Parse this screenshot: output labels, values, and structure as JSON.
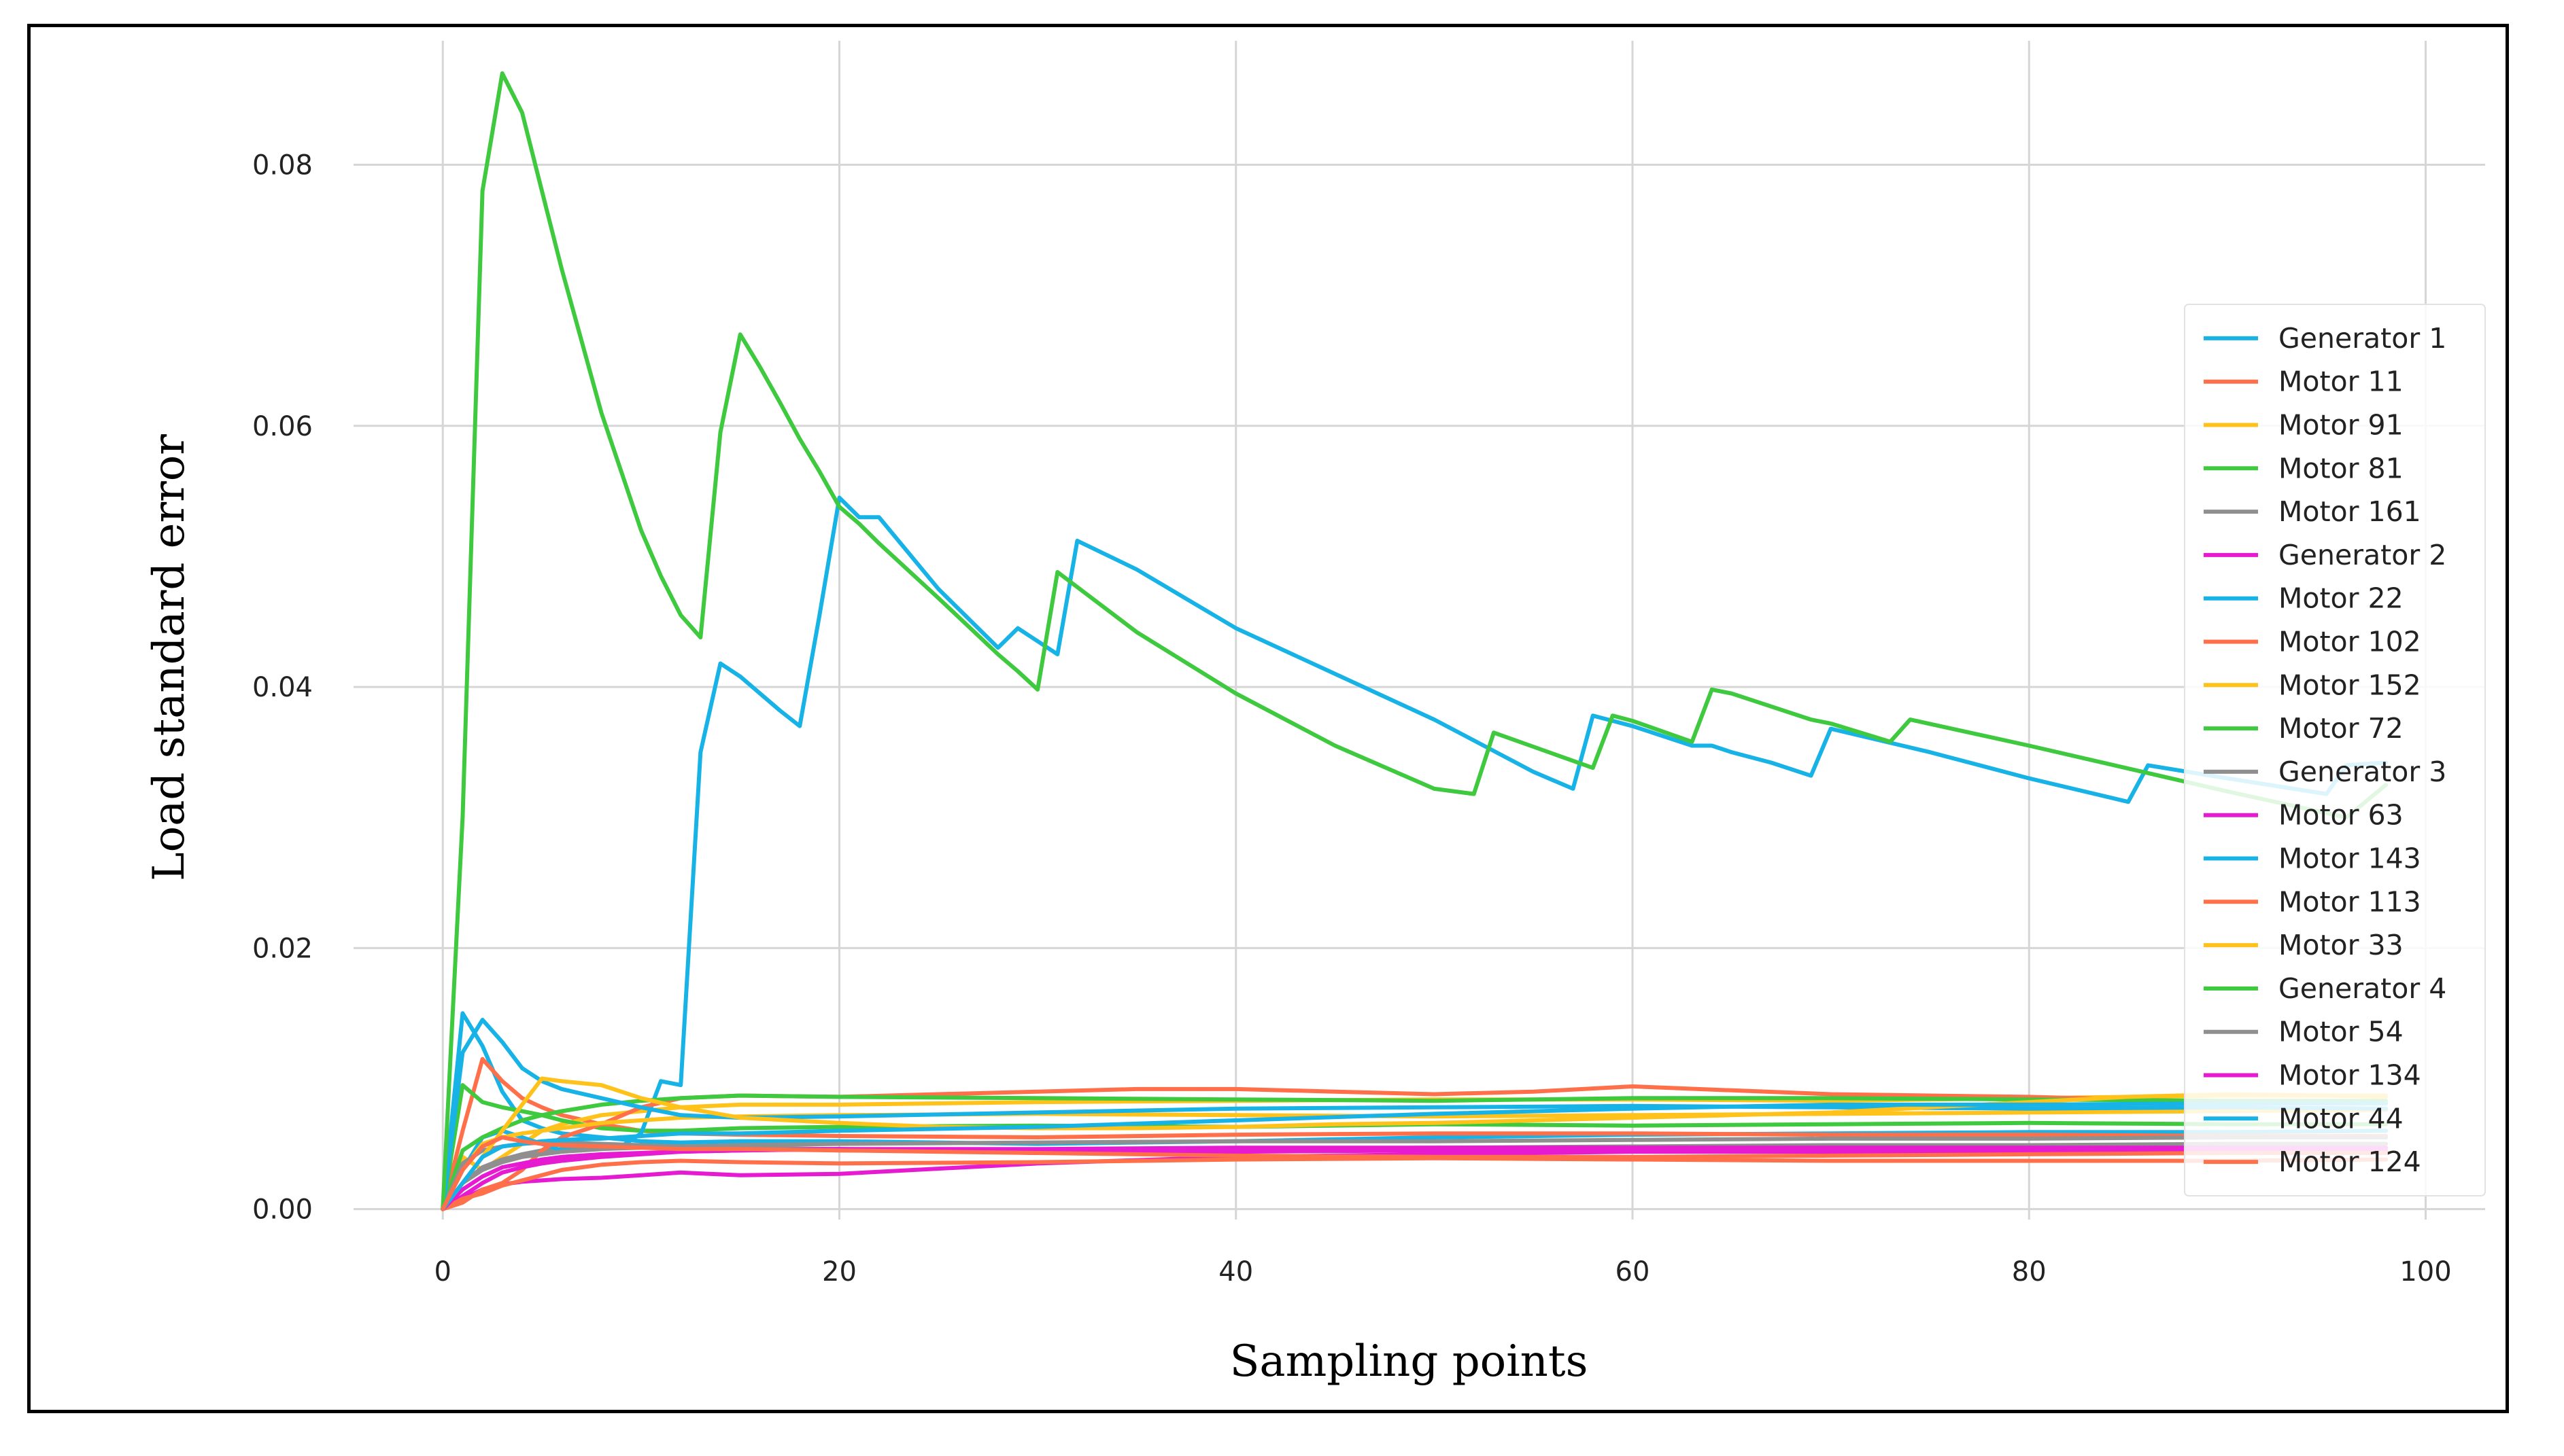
{
  "chart_data": {
    "type": "line",
    "title": "",
    "xlabel": "Sampling points",
    "ylabel": "Load standard error",
    "xlim": [
      -4.5,
      103
    ],
    "ylim": [
      -0.0008,
      0.0895
    ],
    "xticks": [
      0,
      20,
      40,
      60,
      80,
      100
    ],
    "xtick_labels": [
      "0",
      "20",
      "40",
      "60",
      "80",
      "100"
    ],
    "yticks": [
      0.0,
      0.02,
      0.04,
      0.06,
      0.08
    ],
    "ytick_labels": [
      "0.00",
      "0.02",
      "0.04",
      "0.06",
      "0.08"
    ],
    "grid": true,
    "legend_position": "right",
    "series": [
      {
        "name": "Generator 1",
        "color": "#17b3e6",
        "x": [
          0,
          1,
          2,
          3,
          4,
          5,
          6,
          8,
          10,
          12,
          15,
          20,
          30,
          40,
          50,
          60,
          70,
          80,
          90,
          98
        ],
        "y": [
          0,
          0.015,
          0.0125,
          0.009,
          0.0068,
          0.0062,
          0.0058,
          0.0055,
          0.0052,
          0.0051,
          0.0052,
          0.0052,
          0.005,
          0.0052,
          0.0055,
          0.0057,
          0.0058,
          0.0059,
          0.0059,
          0.006
        ]
      },
      {
        "name": "Motor 11",
        "color": "#ff6f4a",
        "x": [
          0,
          1,
          2,
          3,
          4,
          5,
          6,
          8,
          10,
          12,
          15,
          20,
          30,
          40,
          50,
          60,
          70,
          80,
          90,
          98
        ],
        "y": [
          0,
          0.006,
          0.0115,
          0.0098,
          0.0085,
          0.0078,
          0.0072,
          0.0065,
          0.006,
          0.0058,
          0.0057,
          0.0056,
          0.0055,
          0.0057,
          0.0058,
          0.0058,
          0.0057,
          0.0057,
          0.0056,
          0.0056
        ]
      },
      {
        "name": "Motor 91",
        "color": "#ffc21a",
        "x": [
          0,
          1,
          2,
          3,
          4,
          5,
          6,
          8,
          10,
          12,
          15,
          20,
          30,
          40,
          50,
          60,
          70,
          80,
          90,
          98
        ],
        "y": [
          0,
          0.004,
          0.003,
          0.004,
          0.005,
          0.006,
          0.0065,
          0.0072,
          0.0075,
          0.0078,
          0.008,
          0.008,
          0.0082,
          0.0083,
          0.0084,
          0.0084,
          0.0083,
          0.0085,
          0.0087,
          0.0087
        ]
      },
      {
        "name": "Motor 81",
        "color": "#3ec93e",
        "x": [
          0,
          1,
          2,
          3,
          4,
          5,
          6,
          8,
          10,
          12,
          15,
          20,
          30,
          40,
          50,
          60,
          70,
          80,
          90,
          98
        ],
        "y": [
          0,
          0.0095,
          0.0082,
          0.0078,
          0.0075,
          0.0072,
          0.0068,
          0.0062,
          0.006,
          0.006,
          0.0062,
          0.0063,
          0.0064,
          0.0063,
          0.0065,
          0.0064,
          0.0065,
          0.0066,
          0.0065,
          0.0065
        ]
      },
      {
        "name": "Motor 161",
        "color": "#8f8f8f",
        "x": [
          0,
          1,
          2,
          3,
          4,
          5,
          6,
          8,
          10,
          12,
          15,
          20,
          30,
          40,
          50,
          60,
          70,
          80,
          90,
          98
        ],
        "y": [
          0,
          0.002,
          0.0032,
          0.0038,
          0.0042,
          0.0045,
          0.0046,
          0.0047,
          0.0048,
          0.0048,
          0.0047,
          0.0045,
          0.0044,
          0.0045,
          0.0046,
          0.0046,
          0.0047,
          0.0047,
          0.0047,
          0.0047
        ]
      },
      {
        "name": "Generator 2",
        "color": "#e61ad1",
        "x": [
          0,
          1,
          2,
          3,
          4,
          5,
          6,
          8,
          10,
          12,
          15,
          20,
          30,
          40,
          50,
          60,
          70,
          80,
          90,
          98
        ],
        "y": [
          0,
          0.0008,
          0.0015,
          0.0019,
          0.0021,
          0.0022,
          0.0023,
          0.0024,
          0.0026,
          0.0028,
          0.0026,
          0.0027,
          0.0035,
          0.004,
          0.0042,
          0.0044,
          0.0044,
          0.0044,
          0.0043,
          0.0043
        ]
      },
      {
        "name": "Motor 22",
        "color": "#17b3e6",
        "x": [
          0,
          1,
          2,
          3,
          4,
          5,
          6,
          7,
          8,
          9,
          10,
          11,
          12,
          13,
          14,
          15,
          16,
          17,
          18,
          19,
          20,
          21,
          22,
          25,
          28,
          29,
          30,
          31,
          32,
          35,
          40,
          45,
          50,
          55,
          57,
          58,
          59,
          60,
          62,
          63,
          64,
          65,
          67,
          69,
          70,
          75,
          80,
          85,
          86,
          90,
          95,
          96,
          98
        ],
        "y": [
          0,
          0.003,
          0.0055,
          0.006,
          0.0055,
          0.005,
          0.0045,
          0.0045,
          0.0048,
          0.0048,
          0.0058,
          0.0098,
          0.0095,
          0.035,
          0.0418,
          0.0408,
          0.0395,
          0.0382,
          0.037,
          0.0455,
          0.0545,
          0.053,
          0.053,
          0.0475,
          0.043,
          0.0445,
          0.0435,
          0.0425,
          0.0512,
          0.049,
          0.0445,
          0.041,
          0.0375,
          0.0335,
          0.0322,
          0.0378,
          0.0374,
          0.037,
          0.036,
          0.0355,
          0.0355,
          0.035,
          0.0342,
          0.0332,
          0.0368,
          0.035,
          0.033,
          0.0312,
          0.034,
          0.033,
          0.0318,
          0.034,
          0.0342
        ]
      },
      {
        "name": "Motor 102",
        "color": "#ff6f4a",
        "x": [
          0,
          1,
          2,
          3,
          4,
          5,
          6,
          8,
          10,
          12,
          15,
          20,
          25,
          30,
          35,
          40,
          45,
          50,
          55,
          60,
          65,
          70,
          75,
          80,
          85,
          90,
          95,
          98
        ],
        "y": [
          0,
          0.0005,
          0.0015,
          0.002,
          0.003,
          0.0045,
          0.0055,
          0.0065,
          0.0078,
          0.0085,
          0.0087,
          0.0086,
          0.0088,
          0.009,
          0.0092,
          0.0092,
          0.009,
          0.0088,
          0.009,
          0.0094,
          0.0091,
          0.0088,
          0.0087,
          0.0086,
          0.0084,
          0.0082,
          0.0082,
          0.0081
        ]
      },
      {
        "name": "Motor 152",
        "color": "#ffc21a",
        "x": [
          0,
          1,
          2,
          3,
          4,
          5,
          6,
          8,
          10,
          12,
          15,
          20,
          30,
          40,
          50,
          60,
          70,
          80,
          90,
          98
        ],
        "y": [
          0,
          0.003,
          0.005,
          0.0055,
          0.0058,
          0.006,
          0.0062,
          0.0066,
          0.0068,
          0.007,
          0.0071,
          0.0072,
          0.0073,
          0.0072,
          0.0071,
          0.0072,
          0.0073,
          0.0074,
          0.0075,
          0.0076
        ]
      },
      {
        "name": "Motor 72",
        "color": "#3ec93e",
        "x": [
          0,
          1,
          2,
          3,
          4,
          5,
          6,
          8,
          10,
          12,
          15,
          20,
          30,
          40,
          50,
          60,
          70,
          80,
          90,
          98
        ],
        "y": [
          0,
          0.0045,
          0.0055,
          0.0062,
          0.0068,
          0.0072,
          0.0075,
          0.008,
          0.0083,
          0.0085,
          0.0087,
          0.0086,
          0.0085,
          0.0084,
          0.0083,
          0.0085,
          0.0085,
          0.0084,
          0.0083,
          0.0083
        ]
      },
      {
        "name": "Generator 3",
        "color": "#8f8f8f",
        "x": [
          0,
          1,
          2,
          3,
          4,
          5,
          6,
          8,
          10,
          12,
          15,
          20,
          30,
          40,
          50,
          60,
          70,
          80,
          90,
          98
        ],
        "y": [
          0,
          0.0035,
          0.0045,
          0.0048,
          0.005,
          0.0051,
          0.0051,
          0.005,
          0.0049,
          0.0048,
          0.0047,
          0.0046,
          0.0045,
          0.0046,
          0.0047,
          0.0048,
          0.0049,
          0.0049,
          0.005,
          0.005
        ]
      },
      {
        "name": "Motor 63",
        "color": "#e61ad1",
        "x": [
          0,
          1,
          2,
          3,
          4,
          5,
          6,
          8,
          10,
          12,
          15,
          20,
          30,
          40,
          50,
          60,
          70,
          80,
          90,
          98
        ],
        "y": [
          0,
          0.001,
          0.002,
          0.0028,
          0.0032,
          0.0035,
          0.0037,
          0.004,
          0.0042,
          0.0044,
          0.0045,
          0.0046,
          0.0043,
          0.0044,
          0.0045,
          0.0045,
          0.0045,
          0.0045,
          0.0045,
          0.0045
        ]
      },
      {
        "name": "Motor 143",
        "color": "#17b3e6",
        "x": [
          0,
          1,
          2,
          3,
          4,
          5,
          6,
          8,
          10,
          12,
          15,
          20,
          30,
          40,
          50,
          60,
          70,
          80,
          90,
          98
        ],
        "y": [
          0,
          0.012,
          0.0145,
          0.0128,
          0.0108,
          0.0098,
          0.0092,
          0.0085,
          0.0078,
          0.0072,
          0.007,
          0.0071,
          0.0074,
          0.0077,
          0.0078,
          0.0079,
          0.0078,
          0.0077,
          0.0078,
          0.0077
        ]
      },
      {
        "name": "Motor 113",
        "color": "#ff6f4a",
        "x": [
          0,
          1,
          2,
          3,
          4,
          5,
          6,
          8,
          10,
          12,
          15,
          20,
          30,
          40,
          50,
          60,
          70,
          80,
          90,
          98
        ],
        "y": [
          0,
          0.0008,
          0.0012,
          0.0018,
          0.0022,
          0.0026,
          0.003,
          0.0034,
          0.0036,
          0.0037,
          0.0036,
          0.0035,
          0.0036,
          0.0038,
          0.0039,
          0.0038,
          0.0037,
          0.0037,
          0.0037,
          0.0038
        ]
      },
      {
        "name": "Motor 33",
        "color": "#ffc21a",
        "x": [
          0,
          1,
          2,
          3,
          4,
          5,
          6,
          8,
          10,
          12,
          15,
          20,
          25,
          30,
          35,
          40,
          45,
          50,
          55,
          60,
          65,
          70,
          75,
          80,
          85,
          90,
          95,
          98
        ],
        "y": [
          0,
          0.002,
          0.004,
          0.006,
          0.008,
          0.01,
          0.0098,
          0.0095,
          0.0085,
          0.0078,
          0.007,
          0.0066,
          0.0063,
          0.0062,
          0.0062,
          0.0063,
          0.0065,
          0.0066,
          0.0068,
          0.007,
          0.0072,
          0.0074,
          0.0078,
          0.0082,
          0.0086,
          0.0088,
          0.0087,
          0.0086
        ]
      },
      {
        "name": "Generator 4",
        "color": "#3ec93e",
        "x": [
          0,
          1,
          2,
          3,
          4,
          5,
          6,
          7,
          8,
          9,
          10,
          11,
          12,
          13,
          14,
          15,
          16,
          17,
          18,
          19,
          20,
          21,
          22,
          25,
          28,
          29,
          30,
          31,
          35,
          40,
          45,
          50,
          52,
          53,
          58,
          59,
          60,
          63,
          64,
          65,
          69,
          70,
          73,
          74,
          80,
          90,
          96,
          98
        ],
        "y": [
          0,
          0.03,
          0.078,
          0.087,
          0.084,
          0.078,
          0.072,
          0.0665,
          0.061,
          0.0565,
          0.052,
          0.0485,
          0.0455,
          0.0438,
          0.0595,
          0.067,
          0.0645,
          0.0618,
          0.059,
          0.0565,
          0.0538,
          0.0525,
          0.051,
          0.0468,
          0.0425,
          0.0412,
          0.0398,
          0.0488,
          0.0442,
          0.0395,
          0.0355,
          0.0322,
          0.0318,
          0.0365,
          0.0338,
          0.0378,
          0.0374,
          0.0358,
          0.0398,
          0.0395,
          0.0375,
          0.0372,
          0.0358,
          0.0375,
          0.0355,
          0.032,
          0.03,
          0.0325
        ]
      },
      {
        "name": "Motor 54",
        "color": "#8f8f8f",
        "x": [
          0,
          1,
          2,
          3,
          4,
          5,
          6,
          8,
          10,
          12,
          15,
          20,
          30,
          40,
          50,
          60,
          70,
          80,
          90,
          98
        ],
        "y": [
          0,
          0.002,
          0.003,
          0.0036,
          0.004,
          0.0042,
          0.0044,
          0.0046,
          0.0047,
          0.0048,
          0.0049,
          0.005,
          0.0051,
          0.0052,
          0.0052,
          0.0053,
          0.0054,
          0.0054,
          0.0055,
          0.0055
        ]
      },
      {
        "name": "Motor 134",
        "color": "#e61ad1",
        "x": [
          0,
          1,
          2,
          3,
          4,
          5,
          6,
          8,
          10,
          12,
          15,
          20,
          30,
          40,
          50,
          60,
          70,
          80,
          90,
          98
        ],
        "y": [
          0,
          0.0015,
          0.0025,
          0.0032,
          0.0035,
          0.0038,
          0.004,
          0.0042,
          0.0043,
          0.0044,
          0.0045,
          0.0046,
          0.0046,
          0.0047,
          0.0047,
          0.0047,
          0.0047,
          0.0047,
          0.0047,
          0.0047
        ]
      },
      {
        "name": "Motor 44",
        "color": "#17b3e6",
        "x": [
          0,
          1,
          2,
          3,
          4,
          5,
          6,
          8,
          10,
          12,
          15,
          20,
          30,
          40,
          50,
          60,
          70,
          80,
          90,
          98
        ],
        "y": [
          0,
          0.002,
          0.004,
          0.0048,
          0.005,
          0.0052,
          0.0053,
          0.0054,
          0.0056,
          0.0058,
          0.0058,
          0.006,
          0.0063,
          0.0068,
          0.0073,
          0.0077,
          0.008,
          0.008,
          0.0081,
          0.0081
        ]
      },
      {
        "name": "Motor 124",
        "color": "#ff6f4a",
        "x": [
          0,
          1,
          2,
          3,
          4,
          5,
          6,
          8,
          10,
          12,
          15,
          20,
          30,
          40,
          50,
          60,
          70,
          80,
          90,
          98
        ],
        "y": [
          0,
          0.003,
          0.0048,
          0.0055,
          0.0052,
          0.005,
          0.0049,
          0.0048,
          0.0047,
          0.0046,
          0.0046,
          0.0045,
          0.0043,
          0.0041,
          0.004,
          0.004,
          0.0041,
          0.0042,
          0.0043,
          0.0043
        ]
      }
    ]
  }
}
